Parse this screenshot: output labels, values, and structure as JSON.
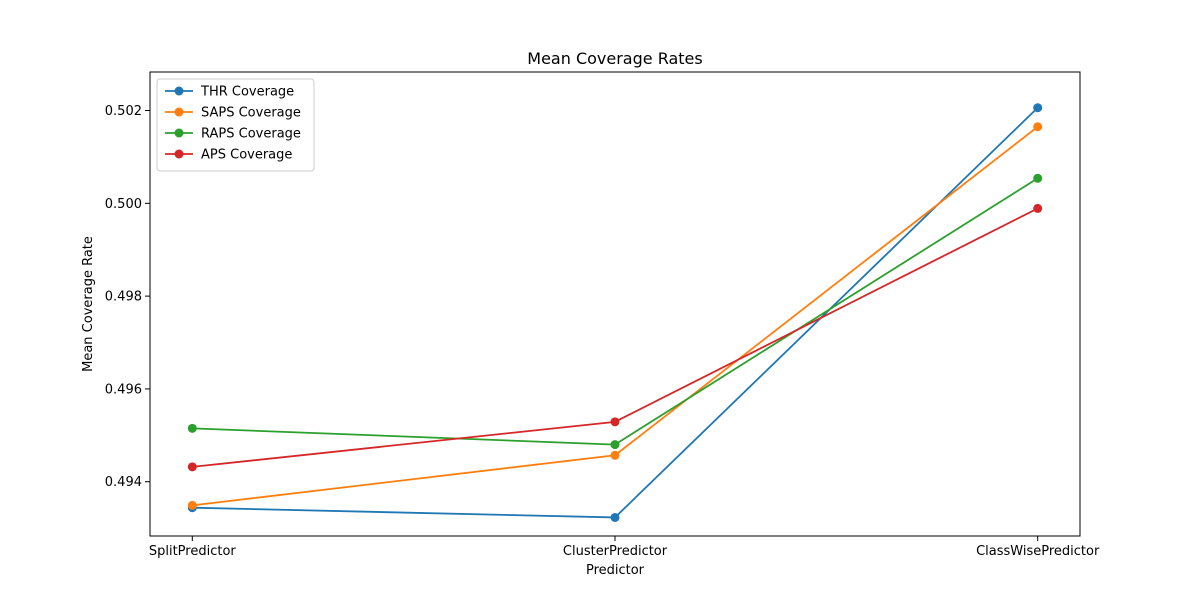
{
  "chart_data": {
    "type": "line",
    "title": "Mean Coverage Rates",
    "xlabel": "Predictor",
    "ylabel": "Mean Coverage Rate",
    "categories": [
      "SplitPredictor",
      "ClusterPredictor",
      "ClassWisePredictor"
    ],
    "ylim": [
      0.49283,
      0.50283
    ],
    "yticks": [
      0.494,
      0.496,
      0.498,
      0.5,
      0.502
    ],
    "ytick_labels": [
      "0.494",
      "0.496",
      "0.498",
      "0.500",
      "0.502"
    ],
    "grid": false,
    "legend_position": "top-left",
    "series": [
      {
        "name": "THR Coverage",
        "color": "#1f77b4",
        "values": [
          0.49344,
          0.49323,
          0.50206
        ]
      },
      {
        "name": "SAPS Coverage",
        "color": "#ff7f0e",
        "values": [
          0.49349,
          0.49457,
          0.50165
        ]
      },
      {
        "name": "RAPS Coverage",
        "color": "#2ca02c",
        "values": [
          0.49515,
          0.4948,
          0.50054
        ]
      },
      {
        "name": "APS Coverage",
        "color": "#d62728",
        "values": [
          0.49432,
          0.49529,
          0.49989
        ]
      }
    ]
  }
}
